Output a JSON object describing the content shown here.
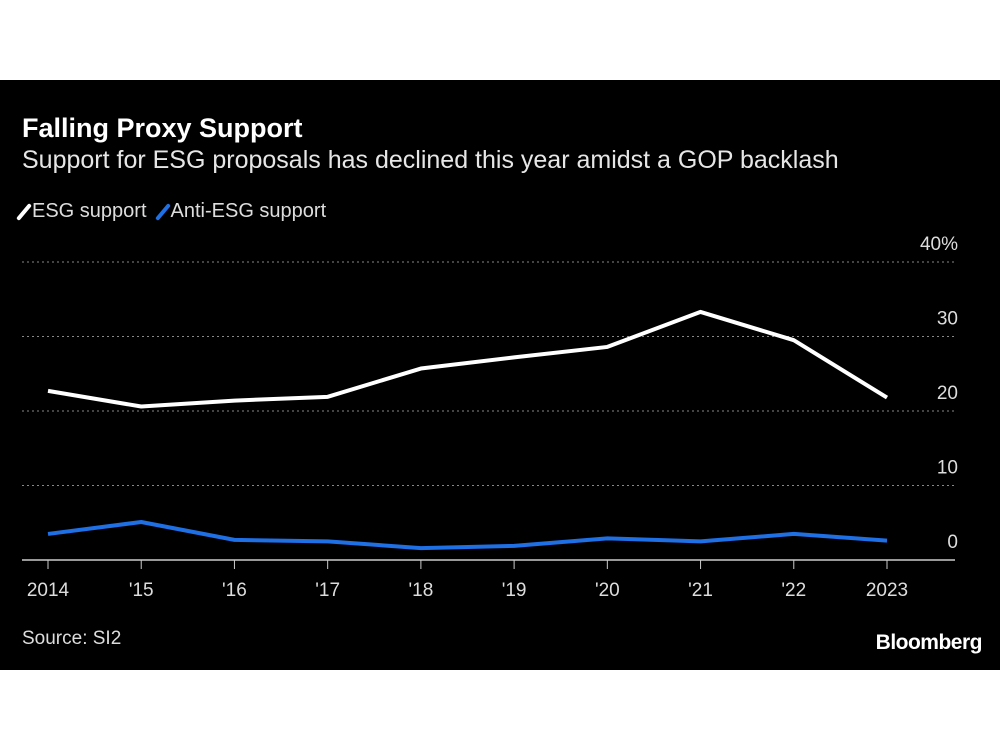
{
  "chart_data": {
    "type": "line",
    "title": "Falling Proxy Support",
    "subtitle": "Support for ESG proposals has declined this year amidst a GOP backlash",
    "x": [
      "2014",
      "'15",
      "'16",
      "'17",
      "'18",
      "'19",
      "'20",
      "'21",
      "'22",
      "2023"
    ],
    "series": [
      {
        "name": "ESG support",
        "color": "#ffffff",
        "values": [
          22.7,
          20.6,
          21.4,
          21.9,
          25.7,
          27.2,
          28.6,
          33.3,
          29.5,
          21.8
        ]
      },
      {
        "name": "Anti-ESG support",
        "color": "#1f6fe5",
        "values": [
          3.5,
          5.1,
          2.7,
          2.5,
          1.6,
          1.9,
          2.9,
          2.5,
          3.5,
          2.6
        ]
      }
    ],
    "y_ticks": [
      "0",
      "10",
      "20",
      "30",
      "40%"
    ],
    "ylim": [
      0,
      40
    ],
    "grid": true,
    "legend": "top-left",
    "y_axis_side": "right",
    "source": "Source: SI2",
    "brand": "Bloomberg"
  }
}
